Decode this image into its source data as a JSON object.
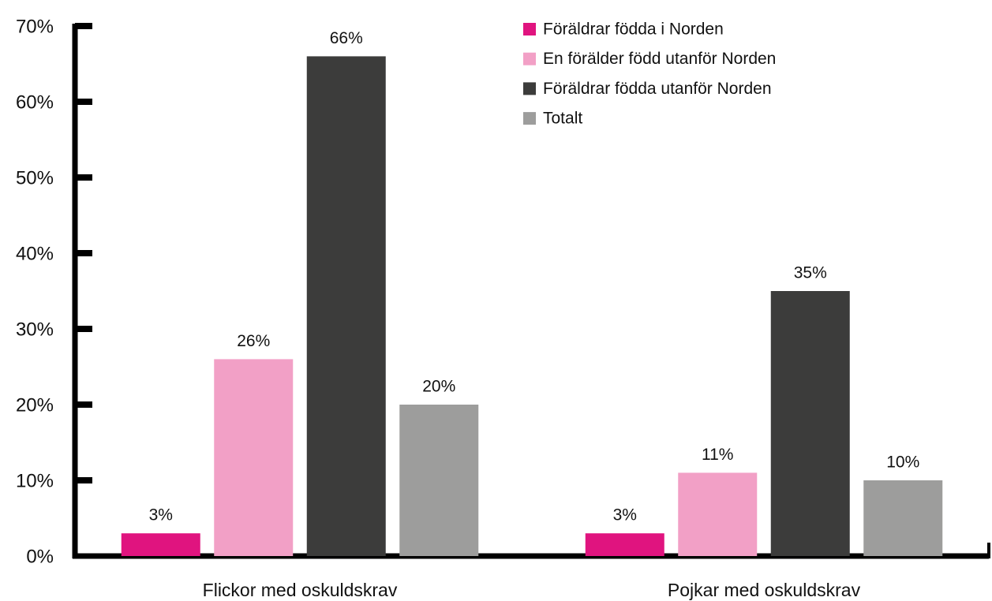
{
  "chart_data": {
    "type": "bar",
    "categories": [
      "Flickor med oskuldskrav",
      "Pojkar med oskuldskrav"
    ],
    "series": [
      {
        "name": "Föräldrar födda i Norden",
        "color": "#e0147f",
        "values": [
          3,
          3
        ],
        "value_labels": [
          "3%",
          "3%"
        ]
      },
      {
        "name": "En förälder född utanför Norden",
        "color": "#f2a0c6",
        "values": [
          26,
          11
        ],
        "value_labels": [
          "26%",
          "11%"
        ]
      },
      {
        "name": "Föräldrar födda utanför Norden",
        "color": "#3c3c3b",
        "values": [
          66,
          35
        ],
        "value_labels": [
          "66%",
          "35%"
        ]
      },
      {
        "name": "Totalt",
        "color": "#9d9d9c",
        "values": [
          20,
          10
        ],
        "value_labels": [
          "20%",
          "10%"
        ]
      }
    ],
    "ylim": [
      0,
      70
    ],
    "yticks": [
      {
        "value": 0,
        "label": "0%"
      },
      {
        "value": 10,
        "label": "10%"
      },
      {
        "value": 20,
        "label": "20%"
      },
      {
        "value": 30,
        "label": "30%"
      },
      {
        "value": 40,
        "label": "40%"
      },
      {
        "value": 50,
        "label": "50%"
      },
      {
        "value": 60,
        "label": "60%"
      },
      {
        "value": 70,
        "label": "70%"
      }
    ],
    "legend": "top-right"
  }
}
